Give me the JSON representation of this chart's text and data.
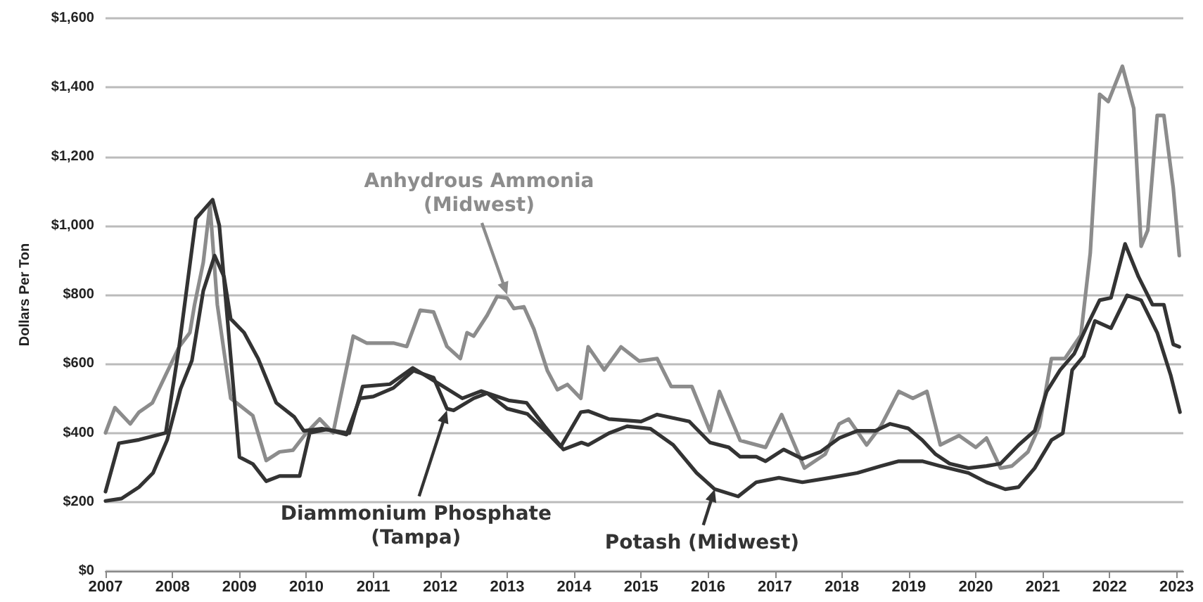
{
  "chart_data": {
    "type": "line",
    "ylabel": "Dollars Per Ton",
    "xlim": [
      2007,
      2023.1
    ],
    "xticks": [
      2007,
      2008,
      2009,
      2010,
      2011,
      2012,
      2013,
      2014,
      2015,
      2016,
      2017,
      2018,
      2019,
      2020,
      2021,
      2022,
      2023
    ],
    "ylim": [
      0,
      1600
    ],
    "yticks": [
      {
        "value": 0,
        "label": "$0"
      },
      {
        "value": 200,
        "label": "$200"
      },
      {
        "value": 400,
        "label": "$400"
      },
      {
        "value": 600,
        "label": "$600"
      },
      {
        "value": 800,
        "label": "$800"
      },
      {
        "value": 1000,
        "label": "$1,000"
      },
      {
        "value": 1200,
        "label": "$1,200"
      },
      {
        "value": 1400,
        "label": "$1,400"
      },
      {
        "value": 1600,
        "label": "$1,600"
      }
    ],
    "grid": "y",
    "marker": "none",
    "line_style": "solid",
    "series": [
      {
        "color": "#8c8c8c",
        "x": [
          2007.0,
          2007.14,
          2007.37,
          2007.5,
          2007.7,
          2007.9,
          2008.1,
          2008.26,
          2008.33,
          2008.46,
          2008.56,
          2008.67,
          2008.87,
          2009.2,
          2009.4,
          2009.6,
          2009.8,
          2010.0,
          2010.2,
          2010.4,
          2010.7,
          2010.9,
          2011.3,
          2011.5,
          2011.7,
          2011.9,
          2012.1,
          2012.3,
          2012.4,
          2012.5,
          2012.7,
          2012.85,
          2013.0,
          2013.1,
          2013.25,
          2013.4,
          2013.6,
          2013.75,
          2013.9,
          2014.1,
          2014.21,
          2014.45,
          2014.7,
          2014.97,
          2015.24,
          2015.45,
          2015.76,
          2016.03,
          2016.17,
          2016.48,
          2016.86,
          2017.1,
          2017.44,
          2017.75,
          2017.96,
          2018.1,
          2018.37,
          2018.58,
          2018.85,
          2019.06,
          2019.27,
          2019.47,
          2019.75,
          2020.0,
          2020.16,
          2020.37,
          2020.54,
          2020.78,
          2020.95,
          2021.13,
          2021.33,
          2021.57,
          2021.71,
          2021.85,
          2021.98,
          2022.19,
          2022.36,
          2022.47,
          2022.57,
          2022.71,
          2022.81,
          2022.95,
          2023.04
        ],
        "values": [
          400,
          473,
          426,
          460,
          487,
          568,
          649,
          690,
          771,
          893,
          1060,
          771,
          500,
          450,
          320,
          345,
          350,
          400,
          440,
          400,
          680,
          660,
          660,
          650,
          755,
          750,
          650,
          615,
          690,
          680,
          740,
          795,
          790,
          760,
          765,
          700,
          580,
          525,
          540,
          500,
          649,
          582,
          649,
          608,
          615,
          534,
          534,
          405,
          520,
          378,
          358,
          453,
          298,
          338,
          426,
          440,
          365,
          419,
          520,
          500,
          520,
          365,
          392,
          358,
          385,
          298,
          304,
          345,
          419,
          615,
          615,
          683,
          920,
          1380,
          1359,
          1461,
          1339,
          940,
          987,
          1319,
          1319,
          1109,
          913
        ]
      },
      {
        "color": "#333333",
        "x": [
          2007.0,
          2007.2,
          2007.5,
          2007.9,
          2008.1,
          2008.35,
          2008.6,
          2008.7,
          2009.0,
          2009.2,
          2009.4,
          2009.6,
          2009.9,
          2010.05,
          2010.3,
          2010.6,
          2010.8,
          2011.0,
          2011.3,
          2011.6,
          2011.9,
          2012.1,
          2012.2,
          2012.5,
          2012.7,
          2013.0,
          2013.3,
          2013.6,
          2013.8,
          2014.1,
          2014.21,
          2014.52,
          2015.0,
          2015.24,
          2015.72,
          2016.03,
          2016.31,
          2016.48,
          2016.72,
          2016.86,
          2017.13,
          2017.41,
          2017.68,
          2017.96,
          2018.23,
          2018.5,
          2018.72,
          2018.99,
          2019.2,
          2019.4,
          2019.61,
          2019.89,
          2020.16,
          2020.37,
          2020.64,
          2020.88,
          2021.06,
          2021.26,
          2021.47,
          2021.68,
          2021.85,
          2022.02,
          2022.23,
          2022.43,
          2022.64,
          2022.81,
          2022.95,
          2023.04
        ],
        "values": [
          230,
          370,
          380,
          400,
          650,
          1020,
          1075,
          1000,
          330,
          310,
          260,
          275,
          275,
          400,
          410,
          395,
          500,
          505,
          530,
          580,
          560,
          470,
          465,
          500,
          515,
          470,
          455,
          400,
          360,
          460,
          463,
          440,
          433,
          453,
          433,
          372,
          358,
          331,
          331,
          318,
          352,
          325,
          345,
          385,
          406,
          406,
          426,
          413,
          379,
          338,
          311,
          298,
          304,
          311,
          365,
          406,
          520,
          582,
          629,
          717,
          784,
          791,
          947,
          852,
          771,
          771,
          656,
          649
        ]
      },
      {
        "color": "#333333",
        "x": [
          2007.0,
          2007.24,
          2007.5,
          2007.71,
          2007.92,
          2008.12,
          2008.29,
          2008.46,
          2008.63,
          2008.77,
          2008.87,
          2009.07,
          2009.28,
          2009.55,
          2009.82,
          2009.96,
          2010.23,
          2010.64,
          2010.84,
          2011.25,
          2011.59,
          2011.99,
          2012.33,
          2012.61,
          2013.02,
          2013.29,
          2013.56,
          2013.84,
          2014.11,
          2014.21,
          2014.52,
          2014.79,
          2015.14,
          2015.48,
          2015.83,
          2016.1,
          2016.45,
          2016.72,
          2017.06,
          2017.41,
          2017.82,
          2018.23,
          2018.58,
          2018.85,
          2019.2,
          2019.47,
          2019.89,
          2020.16,
          2020.44,
          2020.64,
          2020.88,
          2021.13,
          2021.3,
          2021.44,
          2021.61,
          2021.78,
          2022.02,
          2022.26,
          2022.47,
          2022.71,
          2022.91,
          2023.05
        ],
        "values": [
          203,
          210,
          243,
          284,
          379,
          527,
          609,
          811,
          913,
          852,
          730,
          690,
          615,
          487,
          446,
          406,
          412,
          399,
          534,
          541,
          588,
          541,
          500,
          521,
          494,
          487,
          419,
          352,
          372,
          365,
          399,
          419,
          412,
          365,
          284,
          237,
          216,
          257,
          270,
          257,
          270,
          284,
          304,
          318,
          318,
          304,
          284,
          257,
          237,
          243,
          298,
          379,
          399,
          582,
          622,
          724,
          703,
          798,
          784,
          690,
          568,
          460
        ]
      }
    ],
    "annotations": [
      {
        "text": "Anhydrous Ammonia\n(Midwest)",
        "x": 2013.0,
        "y": 800
      },
      {
        "text": "Diammonium Phosphate\n(Tampa)",
        "x": 2012.1,
        "y": 465
      },
      {
        "text": "Potash (Midwest)",
        "x": 2016.1,
        "y": 237
      }
    ]
  }
}
